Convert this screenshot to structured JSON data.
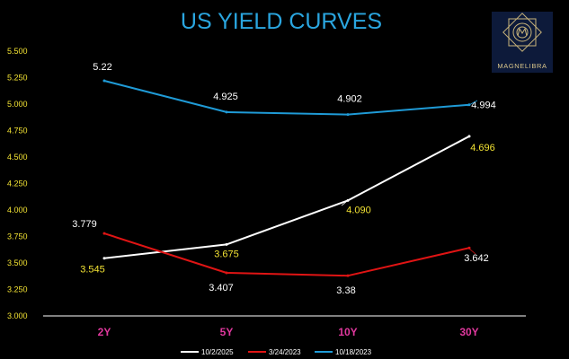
{
  "chart_data": {
    "type": "line",
    "title": "US YIELD CURVES",
    "categories": [
      "2Y",
      "5Y",
      "10Y",
      "30Y"
    ],
    "ylim": [
      3.0,
      5.5
    ],
    "yticks": [
      "3.000",
      "3.250",
      "3.500",
      "3.750",
      "4.000",
      "4.250",
      "4.500",
      "4.750",
      "5.000",
      "5.250",
      "5.500"
    ],
    "grid": false,
    "legend_position": "bottom",
    "series": [
      {
        "name": "10/2/2025",
        "color": "#ffffff",
        "label_color": "#f2e233",
        "values": [
          3.545,
          3.675,
          4.09,
          4.696
        ],
        "labels": [
          "3.545",
          "3.675",
          "4.090",
          "4.696"
        ]
      },
      {
        "name": "3/24/2023",
        "color": "#e01414",
        "label_color": "#ffffff",
        "values": [
          3.779,
          3.407,
          3.38,
          3.642
        ],
        "labels": [
          "3.779",
          "3.407",
          "3.38",
          "3.642"
        ]
      },
      {
        "name": "10/18/2023",
        "color": "#1f9bd7",
        "label_color": "#ffffff",
        "values": [
          5.22,
          4.925,
          4.902,
          4.994
        ],
        "labels": [
          "5.22",
          "4.925",
          "4.902",
          "4.994"
        ]
      }
    ]
  },
  "logo": {
    "text": "MAGNELIBRA",
    "icon": "compass-star-logo-icon"
  },
  "colors": {
    "title": "#2aa6e0",
    "ytick": "#f2e233",
    "xtick": "#e0389e",
    "axis": "#ffffff",
    "background": "#000000"
  }
}
